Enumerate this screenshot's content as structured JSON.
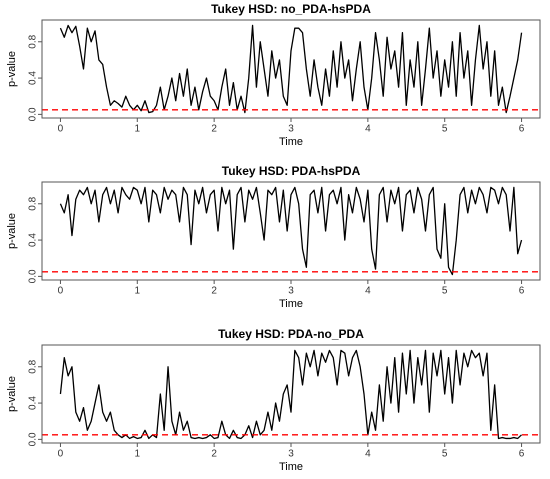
{
  "chart_data": [
    {
      "type": "line",
      "title": "Tukey HSD: no_PDA-hsPDA",
      "xlabel": "Time",
      "ylabel": "p-value",
      "xlim": [
        -0.24,
        6.24
      ],
      "ylim": [
        -0.04,
        1.04
      ],
      "xticks": [
        0,
        1,
        2,
        3,
        4,
        5,
        6
      ],
      "yticks": [
        {
          "value": 0,
          "label": "0.0"
        },
        {
          "value": 0.4,
          "label": "0.4"
        },
        {
          "value": 0.8,
          "label": "0.8"
        }
      ],
      "hline": {
        "value": 0.05,
        "color": "#ff0000"
      },
      "x": [
        0,
        0.05,
        0.1,
        0.15,
        0.2,
        0.25,
        0.3,
        0.35,
        0.4,
        0.45,
        0.5,
        0.55,
        0.6,
        0.65,
        0.7,
        0.75,
        0.8,
        0.85,
        0.9,
        0.95,
        1,
        1.05,
        1.1,
        1.15,
        1.2,
        1.25,
        1.3,
        1.35,
        1.4,
        1.45,
        1.5,
        1.55,
        1.6,
        1.65,
        1.7,
        1.75,
        1.8,
        1.85,
        1.9,
        1.95,
        2,
        2.05,
        2.1,
        2.15,
        2.2,
        2.25,
        2.3,
        2.35,
        2.4,
        2.45,
        2.5,
        2.55,
        2.6,
        2.65,
        2.7,
        2.75,
        2.8,
        2.85,
        2.9,
        2.95,
        3,
        3.05,
        3.1,
        3.15,
        3.2,
        3.25,
        3.3,
        3.35,
        3.4,
        3.45,
        3.5,
        3.55,
        3.6,
        3.65,
        3.7,
        3.75,
        3.8,
        3.85,
        3.9,
        3.95,
        4,
        4.05,
        4.1,
        4.15,
        4.2,
        4.25,
        4.3,
        4.35,
        4.4,
        4.45,
        4.5,
        4.55,
        4.6,
        4.65,
        4.7,
        4.75,
        4.8,
        4.85,
        4.9,
        4.95,
        5,
        5.05,
        5.1,
        5.15,
        5.2,
        5.25,
        5.3,
        5.35,
        5.4,
        5.45,
        5.5,
        5.55,
        5.6,
        5.65,
        5.7,
        5.75,
        5.8,
        5.85,
        5.9,
        5.95,
        6
      ],
      "series": [
        {
          "color": "#000000",
          "values": [
            0.95,
            0.85,
            0.98,
            0.9,
            0.97,
            0.75,
            0.5,
            0.95,
            0.8,
            0.92,
            0.6,
            0.55,
            0.3,
            0.1,
            0.15,
            0.12,
            0.08,
            0.2,
            0.1,
            0.05,
            0.1,
            0.04,
            0.15,
            0.02,
            0.03,
            0.1,
            0.3,
            0.05,
            0.2,
            0.4,
            0.15,
            0.45,
            0.2,
            0.5,
            0.1,
            0.3,
            0.05,
            0.25,
            0.4,
            0.2,
            0.15,
            0.05,
            0.3,
            0.5,
            0.1,
            0.35,
            0.05,
            0.2,
            0.02,
            0.4,
            0.98,
            0.3,
            0.8,
            0.5,
            0.2,
            0.7,
            0.4,
            0.6,
            0.2,
            0.1,
            0.7,
            0.95,
            0.95,
            0.9,
            0.5,
            0.2,
            0.6,
            0.3,
            0.1,
            0.5,
            0.2,
            0.7,
            0.3,
            0.8,
            0.4,
            0.6,
            0.15,
            0.5,
            0.8,
            0.3,
            0.05,
            0.4,
            0.9,
            0.6,
            0.2,
            0.85,
            0.5,
            0.7,
            0.3,
            0.9,
            0.1,
            0.6,
            0.3,
            0.8,
            0.1,
            0.5,
            0.95,
            0.4,
            0.7,
            0.2,
            0.6,
            0.3,
            0.8,
            0.2,
            0.9,
            0.4,
            0.7,
            0.1,
            0.6,
            0.98,
            0.5,
            0.8,
            0.2,
            0.7,
            0.1,
            0.3,
            0.02,
            0.2,
            0.4,
            0.6,
            0.9
          ]
        }
      ]
    },
    {
      "type": "line",
      "title": "Tukey HSD: PDA-hsPDA",
      "xlabel": "Time",
      "ylabel": "p-value",
      "xlim": [
        -0.24,
        6.24
      ],
      "ylim": [
        -0.04,
        1.04
      ],
      "xticks": [
        0,
        1,
        2,
        3,
        4,
        5,
        6
      ],
      "yticks": [
        {
          "value": 0,
          "label": "0.0"
        },
        {
          "value": 0.4,
          "label": "0.4"
        },
        {
          "value": 0.8,
          "label": "0.8"
        }
      ],
      "hline": {
        "value": 0.05,
        "color": "#ff0000"
      },
      "x": [
        0,
        0.05,
        0.1,
        0.15,
        0.2,
        0.25,
        0.3,
        0.35,
        0.4,
        0.45,
        0.5,
        0.55,
        0.6,
        0.65,
        0.7,
        0.75,
        0.8,
        0.85,
        0.9,
        0.95,
        1,
        1.05,
        1.1,
        1.15,
        1.2,
        1.25,
        1.3,
        1.35,
        1.4,
        1.45,
        1.5,
        1.55,
        1.6,
        1.65,
        1.7,
        1.75,
        1.8,
        1.85,
        1.9,
        1.95,
        2,
        2.05,
        2.1,
        2.15,
        2.2,
        2.25,
        2.3,
        2.35,
        2.4,
        2.45,
        2.5,
        2.55,
        2.6,
        2.65,
        2.7,
        2.75,
        2.8,
        2.85,
        2.9,
        2.95,
        3,
        3.05,
        3.1,
        3.15,
        3.2,
        3.25,
        3.3,
        3.35,
        3.4,
        3.45,
        3.5,
        3.55,
        3.6,
        3.65,
        3.7,
        3.75,
        3.8,
        3.85,
        3.9,
        3.95,
        4,
        4.05,
        4.1,
        4.15,
        4.2,
        4.25,
        4.3,
        4.35,
        4.4,
        4.45,
        4.5,
        4.55,
        4.6,
        4.65,
        4.7,
        4.75,
        4.8,
        4.85,
        4.9,
        4.95,
        5,
        5.05,
        5.1,
        5.15,
        5.2,
        5.25,
        5.3,
        5.35,
        5.4,
        5.45,
        5.5,
        5.55,
        5.6,
        5.65,
        5.7,
        5.75,
        5.8,
        5.85,
        5.9,
        5.95,
        6
      ],
      "series": [
        {
          "color": "#000000",
          "values": [
            0.8,
            0.7,
            0.9,
            0.45,
            0.85,
            0.95,
            0.9,
            0.98,
            0.8,
            0.95,
            0.6,
            0.9,
            0.98,
            0.8,
            0.95,
            0.7,
            0.98,
            0.9,
            0.85,
            0.98,
            0.95,
            0.8,
            0.98,
            0.6,
            0.95,
            0.9,
            0.7,
            0.98,
            0.85,
            0.95,
            0.9,
            0.6,
            0.98,
            0.9,
            0.35,
            0.95,
            0.8,
            0.98,
            0.7,
            0.9,
            0.95,
            0.5,
            0.98,
            0.8,
            0.95,
            0.3,
            0.9,
            0.98,
            0.6,
            0.95,
            0.85,
            0.98,
            0.7,
            0.4,
            0.95,
            0.9,
            0.98,
            0.6,
            0.95,
            0.5,
            0.9,
            0.98,
            0.8,
            0.3,
            0.1,
            0.9,
            0.95,
            0.7,
            0.98,
            0.5,
            0.9,
            0.95,
            0.8,
            0.98,
            0.4,
            0.9,
            0.7,
            0.98,
            0.85,
            0.6,
            0.95,
            0.3,
            0.08,
            0.9,
            0.98,
            0.6,
            0.95,
            0.8,
            0.98,
            0.5,
            0.9,
            0.95,
            0.7,
            0.98,
            0.85,
            0.5,
            0.9,
            0.98,
            0.3,
            0.2,
            0.8,
            0.1,
            0.02,
            0.4,
            0.9,
            0.98,
            0.7,
            0.95,
            0.8,
            0.98,
            0.9,
            0.7,
            0.98,
            0.95,
            0.8,
            0.98,
            0.9,
            0.5,
            0.98,
            0.25,
            0.4
          ]
        }
      ]
    },
    {
      "type": "line",
      "title": "Tukey HSD: PDA-no_PDA",
      "xlabel": "Time",
      "ylabel": "p-value",
      "xlim": [
        -0.24,
        6.24
      ],
      "ylim": [
        -0.04,
        1.04
      ],
      "xticks": [
        0,
        1,
        2,
        3,
        4,
        5,
        6
      ],
      "yticks": [
        {
          "value": 0,
          "label": "0.0"
        },
        {
          "value": 0.4,
          "label": "0.4"
        },
        {
          "value": 0.8,
          "label": "0.8"
        }
      ],
      "hline": {
        "value": 0.05,
        "color": "#ff0000"
      },
      "x": [
        0,
        0.05,
        0.1,
        0.15,
        0.2,
        0.25,
        0.3,
        0.35,
        0.4,
        0.45,
        0.5,
        0.55,
        0.6,
        0.65,
        0.7,
        0.75,
        0.8,
        0.85,
        0.9,
        0.95,
        1,
        1.05,
        1.1,
        1.15,
        1.2,
        1.25,
        1.3,
        1.35,
        1.4,
        1.45,
        1.5,
        1.55,
        1.6,
        1.65,
        1.7,
        1.75,
        1.8,
        1.85,
        1.9,
        1.95,
        2,
        2.05,
        2.1,
        2.15,
        2.2,
        2.25,
        2.3,
        2.35,
        2.4,
        2.45,
        2.5,
        2.55,
        2.6,
        2.65,
        2.7,
        2.75,
        2.8,
        2.85,
        2.9,
        2.95,
        3,
        3.05,
        3.1,
        3.15,
        3.2,
        3.25,
        3.3,
        3.35,
        3.4,
        3.45,
        3.5,
        3.55,
        3.6,
        3.65,
        3.7,
        3.75,
        3.8,
        3.85,
        3.9,
        3.95,
        4,
        4.05,
        4.1,
        4.15,
        4.2,
        4.25,
        4.3,
        4.35,
        4.4,
        4.45,
        4.5,
        4.55,
        4.6,
        4.65,
        4.7,
        4.75,
        4.8,
        4.85,
        4.9,
        4.95,
        5,
        5.05,
        5.1,
        5.15,
        5.2,
        5.25,
        5.3,
        5.35,
        5.4,
        5.45,
        5.5,
        5.55,
        5.6,
        5.65,
        5.7,
        5.75,
        5.8,
        5.85,
        5.9,
        5.95,
        6
      ],
      "series": [
        {
          "color": "#000000",
          "values": [
            0.5,
            0.9,
            0.7,
            0.8,
            0.3,
            0.2,
            0.35,
            0.1,
            0.2,
            0.4,
            0.6,
            0.3,
            0.2,
            0.3,
            0.1,
            0.05,
            0.02,
            0.05,
            0.01,
            0.03,
            0.01,
            0.02,
            0.1,
            0.01,
            0.05,
            0.02,
            0.5,
            0.1,
            0.8,
            0.2,
            0.05,
            0.3,
            0.1,
            0.2,
            0.02,
            0.01,
            0.02,
            0.01,
            0.02,
            0.05,
            0.01,
            0.02,
            0.2,
            0.05,
            0.01,
            0.1,
            0.02,
            0.01,
            0.05,
            0.15,
            0.02,
            0.2,
            0.05,
            0.1,
            0.3,
            0.1,
            0.4,
            0.2,
            0.5,
            0.6,
            0.3,
            0.98,
            0.9,
            0.6,
            0.95,
            0.8,
            0.98,
            0.7,
            0.95,
            0.85,
            0.98,
            0.9,
            0.6,
            0.98,
            0.95,
            0.7,
            0.9,
            0.98,
            0.8,
            0.5,
            0.05,
            0.3,
            0.1,
            0.6,
            0.2,
            0.8,
            0.4,
            0.9,
            0.3,
            0.95,
            0.5,
            0.98,
            0.4,
            0.9,
            0.6,
            0.98,
            0.3,
            0.95,
            0.7,
            0.98,
            0.5,
            0.9,
            0.4,
            0.98,
            0.6,
            0.95,
            0.8,
            0.98,
            0.9,
            0.95,
            0.7,
            0.95,
            0.1,
            0.6,
            0.01,
            0.02,
            0.01,
            0.01,
            0.02,
            0.01,
            0.05
          ]
        }
      ]
    }
  ]
}
